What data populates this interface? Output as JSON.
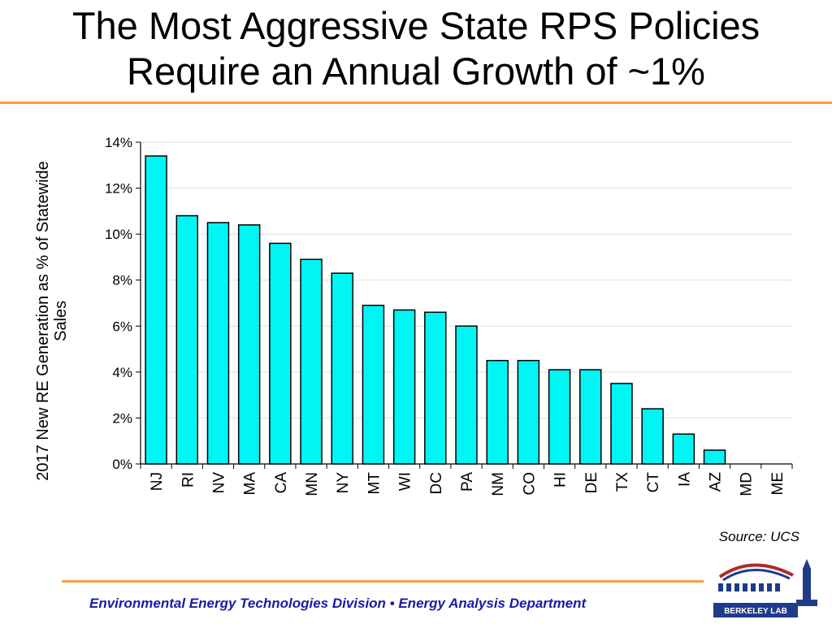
{
  "slide": {
    "title_line1": "The Most Aggressive State RPS Policies",
    "title_line2": "Require an Annual Growth of ~1%",
    "source": "Source: UCS",
    "footer": "Environmental Energy Technologies Division  •  Energy Analysis Department",
    "logo_text": "BERKELEY LAB"
  },
  "colors": {
    "accent_rule": "#f7a043",
    "bar_fill": "#00f5f5",
    "bar_stroke": "#000000",
    "footer_text": "#1a1aa8"
  },
  "chart_data": {
    "type": "bar",
    "ylabel": "2017 New RE Generation as % of Statewide\nSales",
    "xlabel": "",
    "categories": [
      "NJ",
      "RI",
      "NV",
      "MA",
      "CA",
      "MN",
      "NY",
      "MT",
      "WI",
      "DC",
      "PA",
      "NM",
      "CO",
      "HI",
      "DE",
      "TX",
      "CT",
      "IA",
      "AZ",
      "MD",
      "ME"
    ],
    "values": [
      13.4,
      10.8,
      10.5,
      10.4,
      9.6,
      8.9,
      8.3,
      6.9,
      6.7,
      6.6,
      6.0,
      4.5,
      4.5,
      4.1,
      4.1,
      3.5,
      2.4,
      1.3,
      0.6,
      0.0,
      0.0
    ],
    "ylim": [
      0,
      14
    ],
    "yticks": [
      0,
      2,
      4,
      6,
      8,
      10,
      12,
      14
    ],
    "ytick_labels": [
      "0%",
      "2%",
      "4%",
      "6%",
      "8%",
      "10%",
      "12%",
      "14%"
    ],
    "grid": true
  }
}
